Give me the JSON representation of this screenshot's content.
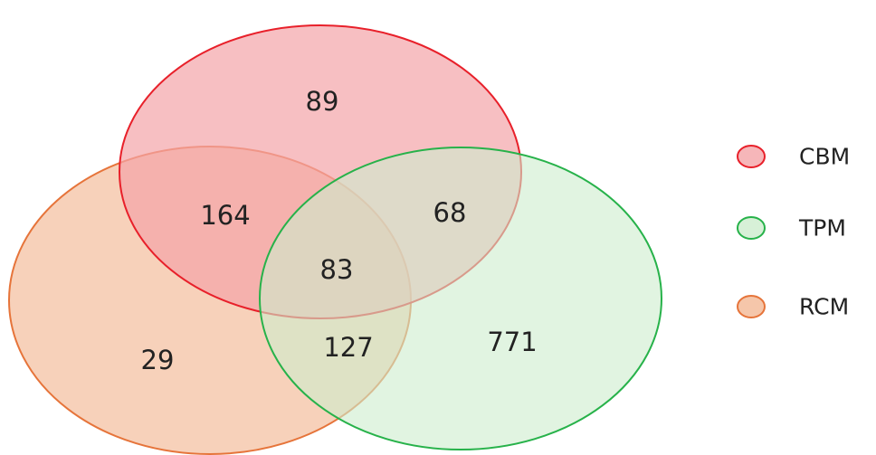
{
  "sets": [
    {
      "id": "cbm",
      "label": "CBM",
      "fill": "#f4a4a8",
      "stroke": "#e8202a"
    },
    {
      "id": "tpm",
      "label": "TPM",
      "fill": "#cdeccd",
      "stroke": "#27b24a"
    },
    {
      "id": "rcm",
      "label": "RCM",
      "fill": "#f3b895",
      "stroke": "#e6743a"
    }
  ],
  "regions": {
    "cbm_only": "89",
    "cbm_rcm": "164",
    "cbm_tpm": "68",
    "all_three": "83",
    "rcm_only": "29",
    "tpm_rcm": "127",
    "tpm_only": "771"
  }
}
